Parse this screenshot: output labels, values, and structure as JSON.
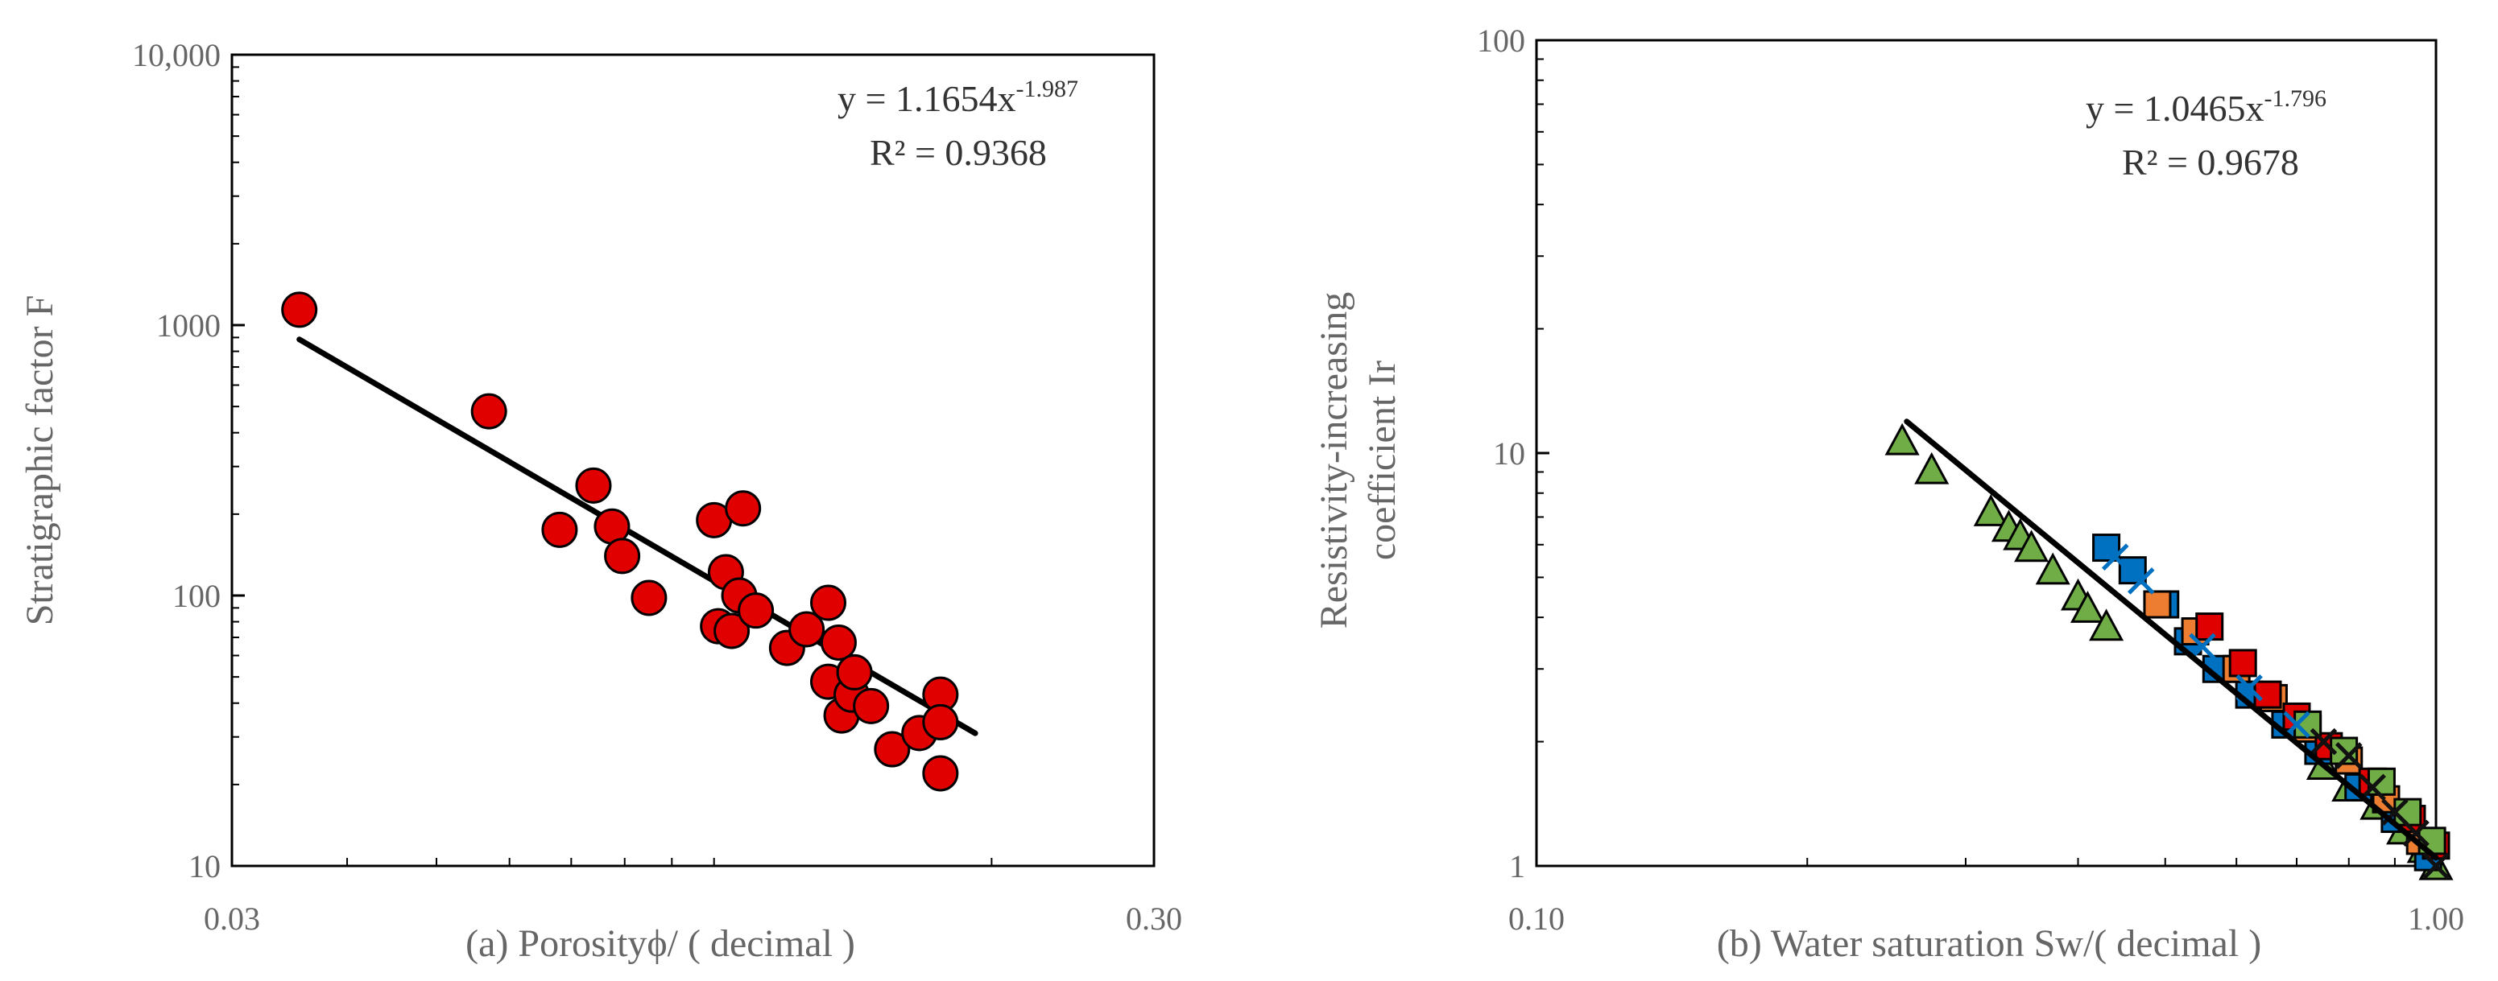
{
  "chart_data": [
    {
      "id": "a",
      "type": "scatter",
      "xscale": "log",
      "yscale": "log",
      "xlim": [
        0.03,
        0.3
      ],
      "ylim": [
        10,
        10000
      ],
      "x_tick_labels": [
        "0.03",
        "0.30"
      ],
      "y_ticks": [
        10,
        100,
        1000,
        10000
      ],
      "y_tick_labels": [
        "10",
        "100",
        "1000",
        "10,000"
      ],
      "xlabel": "(a)  Porosityϕ/ ( decimal )",
      "ylabel": "Stratigraphic factor F",
      "equation": {
        "base": "y = 1.1654x",
        "exponent": "-1.987"
      },
      "r2": "R² = 0.9368",
      "fit": {
        "coef": 1.1654,
        "exp": -1.987,
        "x_from": 0.0355,
        "x_to": 0.192
      },
      "marker": {
        "shape": "circle",
        "color": "#e00000"
      },
      "points": [
        [
          0.0355,
          1140
        ],
        [
          0.057,
          480
        ],
        [
          0.068,
          175
        ],
        [
          0.074,
          255
        ],
        [
          0.0775,
          180
        ],
        [
          0.0795,
          140
        ],
        [
          0.085,
          98
        ],
        [
          0.1,
          190
        ],
        [
          0.101,
          77
        ],
        [
          0.103,
          122
        ],
        [
          0.1045,
          74
        ],
        [
          0.1065,
          100
        ],
        [
          0.1075,
          210
        ],
        [
          0.111,
          88
        ],
        [
          0.12,
          64
        ],
        [
          0.126,
          75
        ],
        [
          0.133,
          94
        ],
        [
          0.133,
          48
        ],
        [
          0.1365,
          67
        ],
        [
          0.1375,
          36
        ],
        [
          0.141,
          43
        ],
        [
          0.142,
          52
        ],
        [
          0.148,
          39
        ],
        [
          0.156,
          27
        ],
        [
          0.167,
          31
        ],
        [
          0.176,
          43
        ],
        [
          0.176,
          34
        ],
        [
          0.176,
          22
        ]
      ]
    },
    {
      "id": "b",
      "type": "scatter",
      "xscale": "log",
      "yscale": "log",
      "xlim": [
        0.1,
        1.0
      ],
      "ylim": [
        1,
        100
      ],
      "x_tick_labels": [
        "0.10",
        "1.00"
      ],
      "y_ticks": [
        1,
        10,
        100
      ],
      "y_tick_labels": [
        "1",
        "10",
        "100"
      ],
      "xlabel": "(b)  Water saturation Sw/( decimal )",
      "ylabel": [
        "Resistivity-increasing",
        "coefficient Ir"
      ],
      "equation": {
        "base": "y = 1.0465x",
        "exponent": "-1.796"
      },
      "r2": "R² = 0.9678",
      "fit": {
        "coef": 1.0465,
        "exp": -1.796,
        "x_from": 0.258,
        "x_to": 1.0
      },
      "series": [
        {
          "name": "green triangles",
          "marker": "triangle",
          "color": "#70ad47",
          "points": [
            [
              0.255,
              10.7
            ],
            [
              0.275,
              9.1
            ],
            [
              0.32,
              7.2
            ],
            [
              0.335,
              6.6
            ],
            [
              0.345,
              6.3
            ],
            [
              0.355,
              5.9
            ],
            [
              0.375,
              5.2
            ],
            [
              0.4,
              4.5
            ],
            [
              0.41,
              4.2
            ],
            [
              0.43,
              3.8
            ],
            [
              0.75,
              1.75
            ],
            [
              0.8,
              1.55
            ],
            [
              0.86,
              1.4
            ],
            [
              0.92,
              1.22
            ],
            [
              0.97,
              1.1
            ],
            [
              1.0,
              1.0
            ]
          ]
        },
        {
          "name": "blue squares",
          "marker": "square",
          "color": "#0070c0",
          "points": [
            [
              0.43,
              5.9
            ],
            [
              0.46,
              5.2
            ],
            [
              0.5,
              4.3
            ],
            [
              0.53,
              3.5
            ],
            [
              0.57,
              3.0
            ],
            [
              0.62,
              2.6
            ],
            [
              0.68,
              2.2
            ],
            [
              0.74,
              1.9
            ],
            [
              0.82,
              1.55
            ],
            [
              0.9,
              1.3
            ],
            [
              0.98,
              1.05
            ]
          ]
        },
        {
          "name": "orange squares",
          "marker": "square",
          "color": "#ed7d31",
          "points": [
            [
              0.49,
              4.3
            ],
            [
              0.54,
              3.7
            ],
            [
              0.6,
              3.0
            ],
            [
              0.66,
              2.55
            ],
            [
              0.72,
              2.15
            ],
            [
              0.8,
              1.8
            ],
            [
              0.88,
              1.45
            ],
            [
              0.96,
              1.15
            ]
          ]
        },
        {
          "name": "red squares",
          "marker": "square",
          "color": "#e00000",
          "points": [
            [
              0.56,
              3.8
            ],
            [
              0.61,
              3.1
            ],
            [
              0.65,
              2.6
            ],
            [
              0.7,
              2.3
            ],
            [
              0.76,
              1.95
            ],
            [
              0.85,
              1.6
            ],
            [
              0.94,
              1.3
            ],
            [
              1.0,
              1.12
            ]
          ]
        },
        {
          "name": "green squares",
          "marker": "square",
          "color": "#70ad47",
          "points": [
            [
              0.72,
              2.2
            ],
            [
              0.79,
              1.9
            ],
            [
              0.87,
              1.6
            ],
            [
              0.93,
              1.35
            ],
            [
              0.99,
              1.15
            ]
          ]
        },
        {
          "name": "blue x",
          "marker": "x",
          "color": "#0070c0",
          "points": [
            [
              0.44,
              5.6
            ],
            [
              0.47,
              4.9
            ],
            [
              0.55,
              3.4
            ],
            [
              0.62,
              2.7
            ],
            [
              0.7,
              2.2
            ]
          ]
        },
        {
          "name": "black x",
          "marker": "x",
          "color": "#111111",
          "points": [
            [
              0.75,
              2.0
            ],
            [
              0.8,
              1.85
            ],
            [
              0.85,
              1.55
            ],
            [
              0.9,
              1.35
            ],
            [
              0.95,
              1.2
            ],
            [
              1.0,
              1.0
            ]
          ]
        }
      ]
    }
  ]
}
